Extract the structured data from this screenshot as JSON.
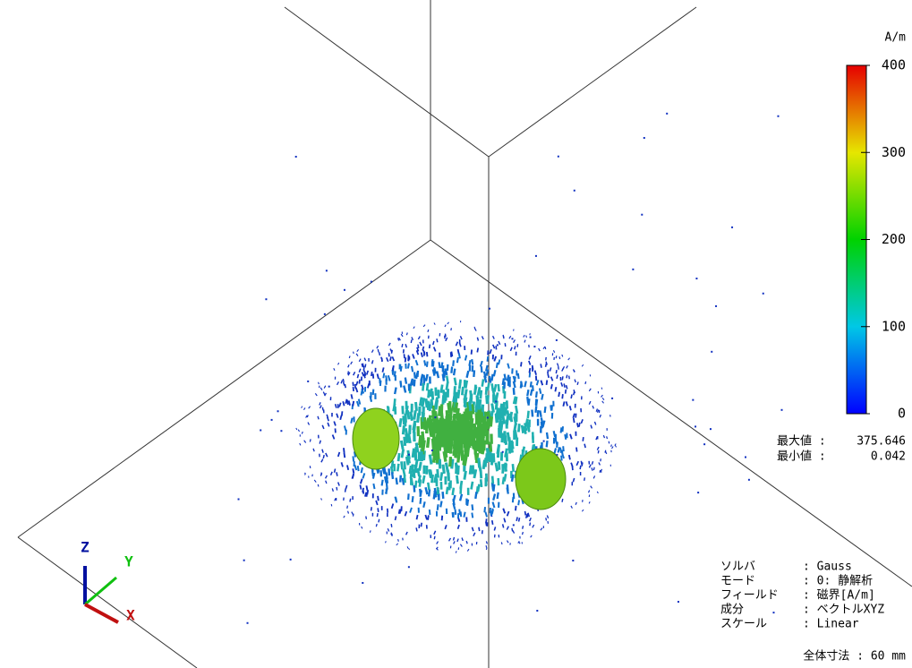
{
  "colorbar": {
    "unit": "A/m",
    "range": [
      0,
      400
    ],
    "ticks": [
      0,
      100,
      200,
      300,
      400
    ]
  },
  "stats": {
    "max_label": "最大値 :",
    "max": 375.646,
    "min_label": "最小値 :",
    "min": 0.042
  },
  "info": [
    [
      "ソルバ",
      ": Gauss"
    ],
    [
      "モード",
      ": 0: 静解析"
    ],
    [
      "フィールド",
      ": 磁界[A/m]"
    ],
    [
      "成分",
      ": ベクトルXYZ"
    ],
    [
      "スケール",
      ": Linear"
    ]
  ],
  "size": "全体寸法 : 60 mm",
  "axes": {
    "x": "X",
    "y": "Y",
    "z": "Z"
  }
}
